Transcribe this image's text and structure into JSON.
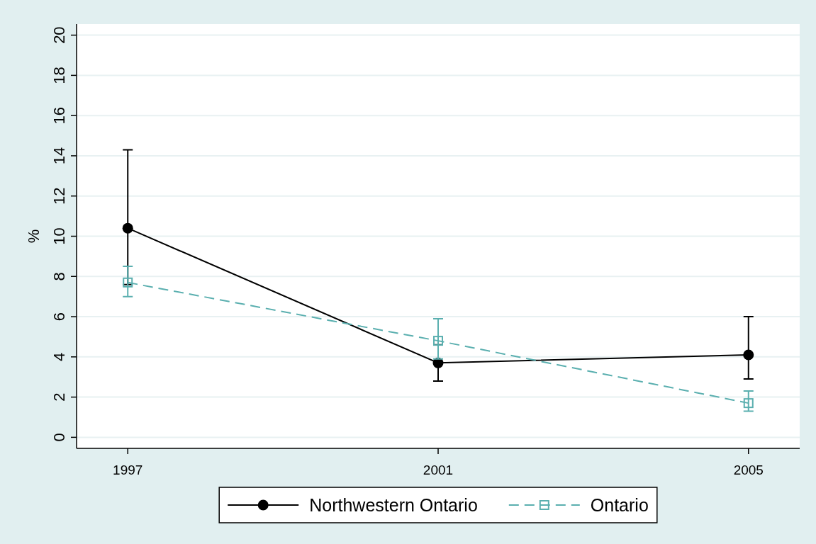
{
  "chart_data": {
    "type": "line",
    "ylabel": "%",
    "x": [
      1997,
      2001,
      2005
    ],
    "xlim": [
      1996.34,
      2005.66
    ],
    "xticks": [
      1997,
      2001,
      2005
    ],
    "ylim": [
      -0.55,
      20.55
    ],
    "yticks": [
      0,
      2,
      4,
      6,
      8,
      10,
      12,
      14,
      16,
      18,
      20
    ],
    "grid": "y",
    "legend": "bottom",
    "series": [
      {
        "name": "Northwestern Ontario",
        "color": "#000000",
        "values": [
          10.4,
          3.7,
          4.1
        ],
        "errors": [
          [
            7.6,
            14.3
          ],
          [
            2.8,
            4.6
          ],
          [
            2.9,
            6.0
          ]
        ],
        "marker": "circle",
        "line_style": "solid"
      },
      {
        "name": "Ontario",
        "color": "#5aafaf",
        "values": [
          7.7,
          4.8,
          1.7
        ],
        "errors": [
          [
            7.0,
            8.5
          ],
          [
            3.9,
            5.9
          ],
          [
            1.3,
            2.3
          ]
        ],
        "marker": "square",
        "line_style": "dashed"
      }
    ]
  }
}
